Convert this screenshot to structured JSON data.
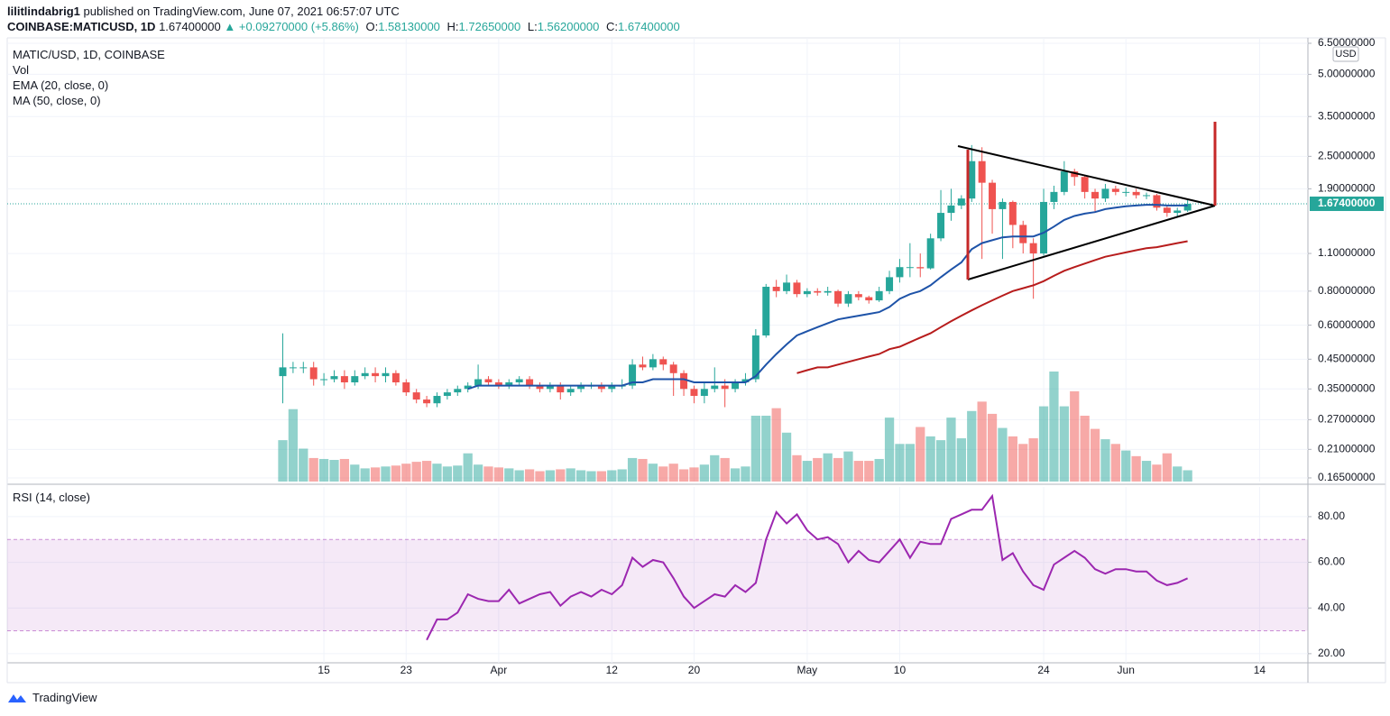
{
  "header": {
    "author": "lilitlindabrig1",
    "published": "published on TradingView.com, June 07, 2021 06:57:07 UTC",
    "symbol": "COINBASE:MATICUSD, 1D",
    "price": "1.67400000",
    "change": "▲ +0.09270000 (+5.86%)",
    "o_label": "O:",
    "o": "1.58130000",
    "h_label": "H:",
    "h": "1.72650000",
    "l_label": "L:",
    "l": "1.56200000",
    "c_label": "C:",
    "c": "1.67400000"
  },
  "footer": {
    "brand": "TradingView"
  },
  "chart_data": [
    {
      "type": "candlestick",
      "title": "MATIC/USD, 1D, COINBASE",
      "currency": "USD",
      "up_color": "#26a69a",
      "down_color": "#ef5350",
      "log_scale": true,
      "grid": true,
      "open": [
        0.39,
        0.42,
        0.42,
        0.42,
        0.38,
        0.38,
        0.39,
        0.37,
        0.39,
        0.4,
        0.39,
        0.4,
        0.37,
        0.34,
        0.32,
        0.31,
        0.33,
        0.34,
        0.35,
        0.36,
        0.38,
        0.37,
        0.36,
        0.37,
        0.38,
        0.36,
        0.35,
        0.36,
        0.34,
        0.35,
        0.36,
        0.36,
        0.35,
        0.36,
        0.36,
        0.43,
        0.42,
        0.45,
        0.43,
        0.4,
        0.35,
        0.33,
        0.35,
        0.36,
        0.35,
        0.37,
        0.38,
        0.55,
        0.83,
        0.8,
        0.86,
        0.78,
        0.8,
        0.79,
        0.8,
        0.72,
        0.78,
        0.76,
        0.74,
        0.8,
        0.9,
        0.98,
        0.98,
        0.97,
        1.25,
        1.55,
        1.65,
        1.75,
        2.4,
        2.0,
        1.6,
        1.7,
        1.4,
        1.2,
        1.1,
        1.7,
        1.85,
        2.2,
        2.1,
        1.85,
        1.75,
        1.9,
        1.85,
        1.85,
        1.8,
        1.8,
        1.62,
        1.55,
        1.5813
      ],
      "high": [
        0.56,
        0.44,
        0.44,
        0.44,
        0.4,
        0.41,
        0.41,
        0.41,
        0.42,
        0.42,
        0.42,
        0.41,
        0.38,
        0.35,
        0.33,
        0.34,
        0.35,
        0.36,
        0.37,
        0.43,
        0.39,
        0.38,
        0.38,
        0.39,
        0.39,
        0.37,
        0.37,
        0.37,
        0.36,
        0.37,
        0.37,
        0.37,
        0.37,
        0.38,
        0.45,
        0.46,
        0.47,
        0.46,
        0.44,
        0.41,
        0.36,
        0.37,
        0.42,
        0.38,
        0.38,
        0.4,
        0.58,
        0.85,
        0.88,
        0.92,
        0.88,
        0.82,
        0.82,
        0.83,
        0.81,
        0.8,
        0.8,
        0.77,
        0.83,
        0.95,
        1.05,
        1.2,
        1.1,
        1.3,
        1.88,
        1.9,
        1.8,
        2.75,
        2.7,
        2.05,
        1.75,
        1.72,
        1.45,
        1.25,
        1.9,
        1.95,
        2.4,
        2.25,
        2.12,
        1.9,
        1.98,
        1.95,
        1.92,
        1.9,
        1.84,
        1.82,
        1.66,
        1.62,
        1.7265
      ],
      "low": [
        0.31,
        0.4,
        0.4,
        0.36,
        0.36,
        0.37,
        0.35,
        0.36,
        0.38,
        0.37,
        0.37,
        0.36,
        0.33,
        0.31,
        0.3,
        0.3,
        0.32,
        0.33,
        0.34,
        0.35,
        0.36,
        0.35,
        0.35,
        0.36,
        0.35,
        0.34,
        0.34,
        0.32,
        0.33,
        0.34,
        0.35,
        0.34,
        0.34,
        0.35,
        0.35,
        0.41,
        0.41,
        0.41,
        0.33,
        0.33,
        0.31,
        0.31,
        0.34,
        0.3,
        0.34,
        0.36,
        0.37,
        0.54,
        0.76,
        0.78,
        0.76,
        0.76,
        0.77,
        0.77,
        0.7,
        0.7,
        0.74,
        0.72,
        0.73,
        0.78,
        0.86,
        0.9,
        0.9,
        0.96,
        1.22,
        1.45,
        1.6,
        1.7,
        1.05,
        1.3,
        1.05,
        1.15,
        1.1,
        0.75,
        1.08,
        1.6,
        1.8,
        1.95,
        1.75,
        1.55,
        1.7,
        1.8,
        1.78,
        1.75,
        1.74,
        1.58,
        1.5,
        1.5,
        1.562
      ],
      "close": [
        0.42,
        0.42,
        0.42,
        0.38,
        0.38,
        0.39,
        0.37,
        0.39,
        0.4,
        0.39,
        0.4,
        0.37,
        0.34,
        0.32,
        0.31,
        0.33,
        0.34,
        0.35,
        0.36,
        0.38,
        0.37,
        0.36,
        0.37,
        0.38,
        0.36,
        0.35,
        0.36,
        0.34,
        0.35,
        0.36,
        0.36,
        0.35,
        0.36,
        0.36,
        0.43,
        0.42,
        0.45,
        0.43,
        0.4,
        0.35,
        0.33,
        0.35,
        0.36,
        0.35,
        0.37,
        0.38,
        0.55,
        0.83,
        0.8,
        0.86,
        0.78,
        0.8,
        0.79,
        0.8,
        0.72,
        0.78,
        0.76,
        0.74,
        0.8,
        0.9,
        0.98,
        0.98,
        0.97,
        1.25,
        1.55,
        1.65,
        1.75,
        2.4,
        2.0,
        1.6,
        1.7,
        1.4,
        1.2,
        1.1,
        1.7,
        1.85,
        2.2,
        2.1,
        1.85,
        1.75,
        1.9,
        1.85,
        1.85,
        1.8,
        1.8,
        1.62,
        1.55,
        1.5813,
        1.674
      ],
      "volume": {
        "name": "Vol",
        "values": [
          44,
          77,
          35,
          25,
          24,
          23,
          24,
          18,
          14,
          15,
          16,
          17,
          19,
          21,
          22,
          19,
          16,
          17,
          30,
          18,
          16,
          15,
          14,
          12,
          13,
          11,
          12,
          13,
          14,
          12,
          11,
          11,
          12,
          13,
          25,
          24,
          19,
          16,
          19,
          13,
          15,
          18,
          28,
          25,
          14,
          16,
          70,
          70,
          78,
          52,
          28,
          22,
          25,
          30,
          25,
          32,
          22,
          22,
          24,
          68,
          40,
          40,
          58,
          48,
          44,
          68,
          46,
          75,
          85,
          72,
          57,
          48,
          40,
          46,
          80,
          117,
          80,
          96,
          70,
          56,
          45,
          40,
          33,
          27,
          22,
          18,
          30,
          16,
          12
        ]
      },
      "series": [
        {
          "name": "EMA (20, close, 0)",
          "color": "#1e53a8",
          "values": [
            null,
            null,
            null,
            null,
            null,
            null,
            null,
            null,
            null,
            null,
            null,
            null,
            null,
            null,
            null,
            null,
            null,
            null,
            0.35,
            0.36,
            0.36,
            0.36,
            0.36,
            0.36,
            0.36,
            0.36,
            0.36,
            0.36,
            0.36,
            0.36,
            0.36,
            0.36,
            0.36,
            0.36,
            0.37,
            0.37,
            0.38,
            0.38,
            0.38,
            0.38,
            0.37,
            0.37,
            0.37,
            0.37,
            0.37,
            0.37,
            0.39,
            0.43,
            0.47,
            0.51,
            0.55,
            0.57,
            0.59,
            0.61,
            0.63,
            0.64,
            0.65,
            0.66,
            0.67,
            0.7,
            0.75,
            0.78,
            0.8,
            0.84,
            0.9,
            0.96,
            1.02,
            1.14,
            1.2,
            1.23,
            1.26,
            1.27,
            1.27,
            1.27,
            1.31,
            1.38,
            1.46,
            1.51,
            1.54,
            1.56,
            1.6,
            1.62,
            1.64,
            1.65,
            1.66,
            1.66,
            1.65,
            1.65,
            1.65
          ]
        },
        {
          "name": "MA (50, close, 0)",
          "color": "#b71c1c",
          "values": [
            null,
            null,
            null,
            null,
            null,
            null,
            null,
            null,
            null,
            null,
            null,
            null,
            null,
            null,
            null,
            null,
            null,
            null,
            null,
            null,
            null,
            null,
            null,
            null,
            null,
            null,
            null,
            null,
            null,
            null,
            null,
            null,
            null,
            null,
            null,
            null,
            null,
            null,
            null,
            null,
            null,
            null,
            null,
            null,
            null,
            null,
            null,
            null,
            null,
            null,
            0.4,
            0.41,
            0.42,
            0.42,
            0.43,
            0.44,
            0.45,
            0.46,
            0.47,
            0.49,
            0.5,
            0.52,
            0.54,
            0.56,
            0.59,
            0.62,
            0.65,
            0.68,
            0.71,
            0.74,
            0.77,
            0.8,
            0.82,
            0.84,
            0.87,
            0.91,
            0.95,
            0.98,
            1.01,
            1.04,
            1.07,
            1.09,
            1.11,
            1.13,
            1.15,
            1.16,
            1.18,
            1.2,
            1.22
          ]
        }
      ],
      "last_price": {
        "value": 1.674,
        "label": "1.67400000"
      },
      "ylim": [
        0.16,
        6.65
      ],
      "yticks": [
        {
          "value": 6.5,
          "label": "6.50000000"
        },
        {
          "value": 5.0,
          "label": "5.00000000"
        },
        {
          "value": 3.5,
          "label": "3.50000000"
        },
        {
          "value": 2.5,
          "label": "2.50000000"
        },
        {
          "value": 1.9,
          "label": "1.90000000"
        },
        {
          "value": 1.1,
          "label": "1.10000000"
        },
        {
          "value": 0.8,
          "label": "0.80000000"
        },
        {
          "value": 0.6,
          "label": "0.60000000"
        },
        {
          "value": 0.45,
          "label": "0.45000000"
        },
        {
          "value": 0.35,
          "label": "0.35000000"
        },
        {
          "value": 0.27,
          "label": "0.27000000"
        },
        {
          "value": 0.21,
          "label": "0.21000000"
        },
        {
          "value": 0.165,
          "label": "0.16500000"
        }
      ],
      "xlim": [
        -26.8,
        99.7
      ],
      "xticks": [
        {
          "value": 4,
          "label": "15"
        },
        {
          "value": 12,
          "label": "23"
        },
        {
          "value": 21,
          "label": "Apr"
        },
        {
          "value": 32,
          "label": "12"
        },
        {
          "value": 40,
          "label": "20"
        },
        {
          "value": 51,
          "label": "May"
        },
        {
          "value": 60,
          "label": "10"
        },
        {
          "value": 74,
          "label": "24"
        },
        {
          "value": 82,
          "label": "Jun"
        },
        {
          "value": 95,
          "label": "14"
        }
      ]
    },
    {
      "type": "line",
      "grid": true,
      "series": [
        {
          "name": "RSI (14, close)",
          "color": "#9c27b0",
          "values": [
            null,
            null,
            null,
            null,
            null,
            null,
            null,
            null,
            null,
            null,
            null,
            null,
            null,
            null,
            26,
            35,
            35,
            38,
            46,
            44,
            43,
            43,
            48,
            42,
            44,
            46,
            47,
            41,
            45,
            47,
            45,
            48,
            46,
            50,
            62,
            58,
            61,
            60,
            53,
            45,
            40,
            43,
            46,
            45,
            50,
            47,
            51,
            70,
            82,
            77,
            81,
            74,
            70,
            71,
            68,
            60,
            65,
            61,
            60,
            65,
            70,
            62,
            69,
            68,
            68,
            79,
            81,
            83,
            83,
            89,
            61,
            64,
            56,
            50,
            48,
            59,
            62,
            65,
            62,
            57,
            55,
            57,
            57,
            56,
            56,
            52,
            50,
            51,
            53
          ]
        }
      ],
      "band": [
        30,
        70
      ],
      "ylim": [
        16,
        93
      ],
      "yticks": [
        {
          "value": 80,
          "label": "80.00"
        },
        {
          "value": 60,
          "label": "60.00"
        },
        {
          "value": 40,
          "label": "40.00"
        },
        {
          "value": 20,
          "label": "20.00"
        }
      ]
    }
  ]
}
